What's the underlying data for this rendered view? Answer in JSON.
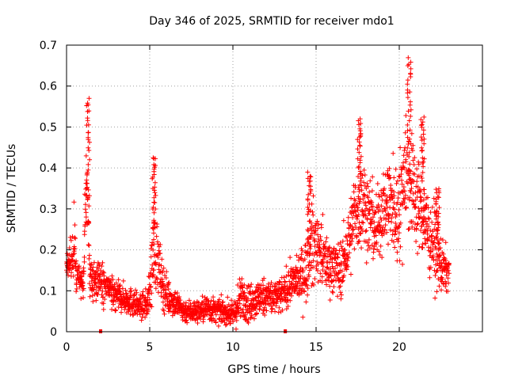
{
  "chart_data": {
    "type": "scatter",
    "title": "Day 346 of 2025, SRMTID for receiver mdo1",
    "xlabel": "GPS time / hours",
    "ylabel": "SRMTID / TECUs",
    "xlim": [
      0,
      25
    ],
    "ylim": [
      0,
      0.7
    ],
    "xticks": [
      0,
      5,
      10,
      15,
      20
    ],
    "yticks": [
      0,
      0.1,
      0.2,
      0.3,
      0.4,
      0.5,
      0.6,
      0.7
    ],
    "xtick_labels": [
      "0",
      "5",
      "10",
      "15",
      "20"
    ],
    "ytick_labels": [
      "0",
      "0.1",
      "0.2",
      "0.3",
      "0.4",
      "0.5",
      "0.6",
      "0.7"
    ],
    "grid": true,
    "marker": "plus",
    "color": "#ff0000",
    "envelope": {
      "x": [
        0,
        0.3,
        0.5,
        0.7,
        1.0,
        1.2,
        1.4,
        1.7,
        2.0,
        2.3,
        2.6,
        3.0,
        3.5,
        4.0,
        4.5,
        4.9,
        5.1,
        5.3,
        5.5,
        5.8,
        6.2,
        6.6,
        7.0,
        7.5,
        8.0,
        8.5,
        9.0,
        9.5,
        10.0,
        10.3,
        10.6,
        11.0,
        11.5,
        12.0,
        12.5,
        13.0,
        13.5,
        14.0,
        14.4,
        14.8,
        15.2,
        15.6,
        16.0,
        16.5,
        17.0,
        17.4,
        17.8,
        18.2,
        18.6,
        19.0,
        19.4,
        19.8,
        20.1,
        20.4,
        20.7,
        21.0,
        21.4,
        21.8,
        22.1,
        22.4,
        22.7,
        23.0
      ],
      "center": [
        0.16,
        0.18,
        0.2,
        0.13,
        0.12,
        0.35,
        0.14,
        0.12,
        0.13,
        0.11,
        0.1,
        0.09,
        0.08,
        0.07,
        0.06,
        0.07,
        0.15,
        0.22,
        0.17,
        0.11,
        0.08,
        0.07,
        0.05,
        0.05,
        0.05,
        0.06,
        0.05,
        0.05,
        0.04,
        0.06,
        0.09,
        0.07,
        0.08,
        0.09,
        0.08,
        0.09,
        0.12,
        0.13,
        0.15,
        0.22,
        0.2,
        0.17,
        0.16,
        0.15,
        0.22,
        0.3,
        0.32,
        0.28,
        0.25,
        0.3,
        0.32,
        0.28,
        0.33,
        0.42,
        0.36,
        0.33,
        0.28,
        0.24,
        0.22,
        0.17,
        0.15,
        0.15
      ],
      "spread": [
        0.03,
        0.05,
        0.09,
        0.04,
        0.04,
        0.12,
        0.05,
        0.04,
        0.04,
        0.04,
        0.04,
        0.035,
        0.03,
        0.03,
        0.025,
        0.03,
        0.09,
        0.1,
        0.07,
        0.05,
        0.035,
        0.03,
        0.025,
        0.025,
        0.025,
        0.03,
        0.025,
        0.025,
        0.025,
        0.05,
        0.05,
        0.04,
        0.04,
        0.04,
        0.04,
        0.04,
        0.04,
        0.05,
        0.07,
        0.09,
        0.07,
        0.06,
        0.06,
        0.06,
        0.08,
        0.1,
        0.1,
        0.09,
        0.08,
        0.09,
        0.1,
        0.1,
        0.12,
        0.14,
        0.12,
        0.1,
        0.09,
        0.08,
        0.08,
        0.07,
        0.05,
        0.04
      ]
    },
    "peaks": [
      {
        "x": 1.28,
        "y": 0.57
      },
      {
        "x": 5.25,
        "y": 0.43
      },
      {
        "x": 14.6,
        "y": 0.39
      },
      {
        "x": 17.6,
        "y": 0.52
      },
      {
        "x": 20.6,
        "y": 0.67
      },
      {
        "x": 21.4,
        "y": 0.53
      },
      {
        "x": 22.3,
        "y": 0.35
      }
    ],
    "gap_markers": [
      {
        "x": 2.05,
        "y": 0.0
      },
      {
        "x": 13.15,
        "y": 0.0
      }
    ],
    "n_points": 2300
  }
}
